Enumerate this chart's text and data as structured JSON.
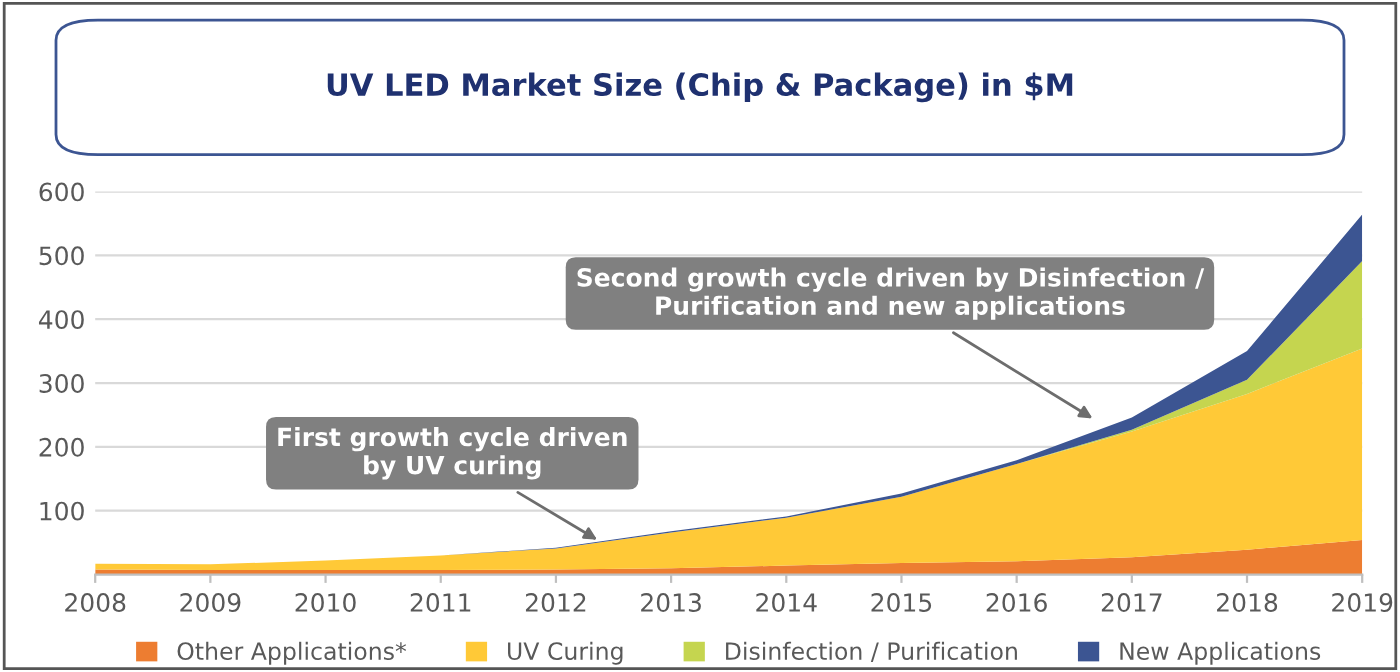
{
  "chart_data": {
    "type": "area",
    "stacked": true,
    "title": "UV LED Market Size (Chip & Package) in $M",
    "x": [
      2008,
      2009,
      2010,
      2011,
      2012,
      2013,
      2014,
      2015,
      2016,
      2017,
      2018,
      2019
    ],
    "series": [
      {
        "name": "Other Applications*",
        "color": "#ed7d31",
        "values": [
          8,
          7,
          7,
          7,
          8,
          10,
          14,
          18,
          21,
          27,
          39,
          54
        ]
      },
      {
        "name": "UV Curing",
        "color": "#ffc937",
        "values": [
          9,
          9,
          15,
          23,
          33,
          56,
          75,
          104,
          152,
          197,
          244,
          300
        ]
      },
      {
        "name": "Disinfection / Purification",
        "color": "#c5d54f",
        "values": [
          0,
          0,
          0,
          0,
          0,
          0,
          0,
          0,
          0,
          3,
          22,
          137
        ]
      },
      {
        "name": "New Applications",
        "color": "#3c5592",
        "values": [
          0,
          0,
          0,
          0,
          1,
          2,
          2,
          5,
          6,
          19,
          45,
          73
        ]
      }
    ],
    "xlim": [
      2008,
      2019
    ],
    "xticks": [
      2008,
      2009,
      2010,
      2011,
      2012,
      2013,
      2014,
      2015,
      2016,
      2017,
      2018,
      2019
    ],
    "ylim": [
      0,
      600
    ],
    "yticks": [
      {
        "value": 0,
        "label": null
      },
      100,
      200,
      300,
      400,
      500,
      600
    ],
    "grid": "y",
    "legend": "bottom",
    "annotations": [
      {
        "text": "First growth cycle driven\nby UV curing",
        "x": 2012.4,
        "y": 50
      },
      {
        "text": "Second growth cycle driven by Disinfection /\nPurification and new applications",
        "x": 2016.7,
        "y": 240
      }
    ]
  }
}
